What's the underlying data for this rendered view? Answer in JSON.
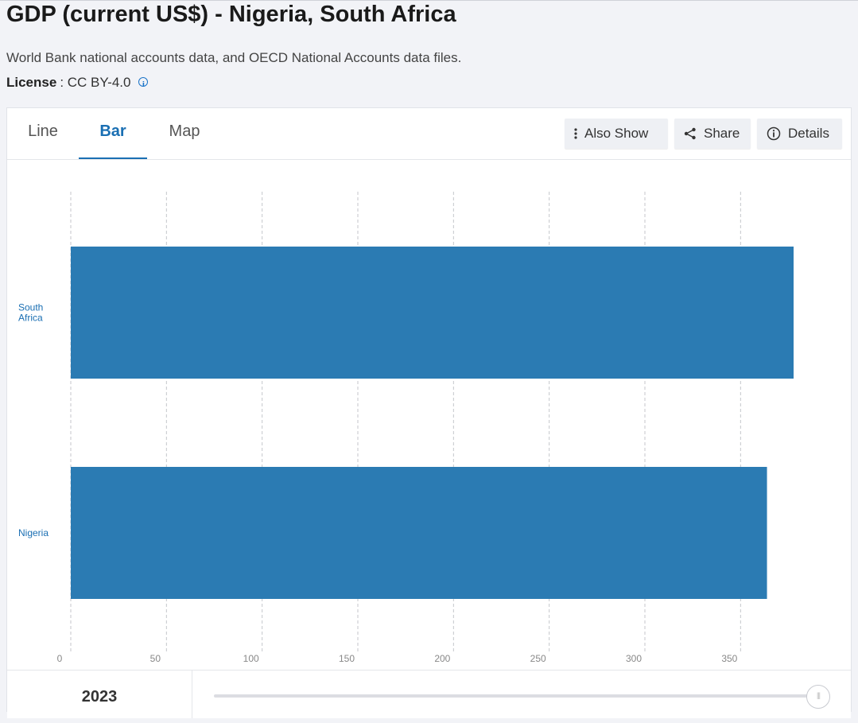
{
  "header": {
    "title": "GDP (current US$) - Nigeria, South Africa",
    "source": "World Bank national accounts data, and OECD National Accounts data files.",
    "license_label": "License",
    "license_value": ": CC BY-4.0"
  },
  "tabs": [
    {
      "label": "Line",
      "active": false
    },
    {
      "label": "Bar",
      "active": true
    },
    {
      "label": "Map",
      "active": false
    }
  ],
  "toolbar": {
    "also_show_label": "Also Show",
    "share_label": "Share",
    "details_label": "Details"
  },
  "colors": {
    "bar": "#2b7bb3",
    "accent": "#1a6fb3",
    "label": "#1a6fb3"
  },
  "chart_data": {
    "type": "bar",
    "orientation": "horizontal",
    "categories": [
      "South Africa",
      "Nigeria"
    ],
    "values": [
      377.7,
      363.8
    ],
    "ylim": [
      0,
      377.7
    ],
    "ticks": [
      0,
      50,
      100,
      150,
      200,
      250,
      300,
      350
    ],
    "grid": true
  },
  "footer": {
    "year": "2023"
  }
}
